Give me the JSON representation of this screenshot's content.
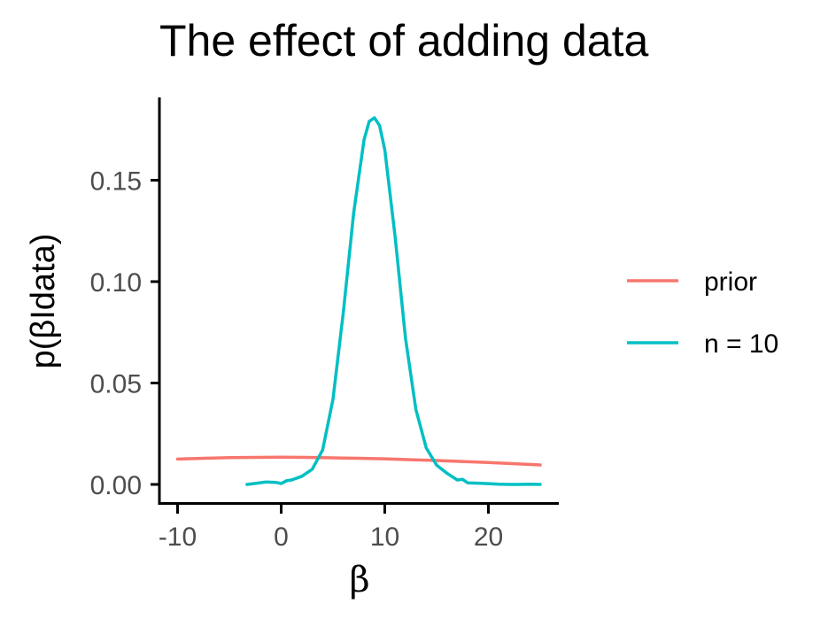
{
  "chart_data": {
    "type": "line",
    "title": "The effect of adding data",
    "xlabel": "β",
    "ylabel": "p(βIdata)",
    "xlim": [
      -11,
      27
    ],
    "ylim": [
      -0.009,
      0.19
    ],
    "x_ticks": [
      -10,
      0,
      10,
      20
    ],
    "x_tick_labels": [
      "-10",
      "0",
      "10",
      "20"
    ],
    "y_ticks": [
      0,
      0.05,
      0.1,
      0.15
    ],
    "y_tick_labels": [
      "0.00",
      "0.05",
      "0.10",
      "0.15"
    ],
    "grid": false,
    "legend_position": "right",
    "series": [
      {
        "name": "prior",
        "color": "#F8766D",
        "x": [
          -10,
          -7.5,
          -5,
          -2.5,
          0,
          2.5,
          5,
          7.5,
          10,
          12.5,
          15,
          17.5,
          20,
          22.5,
          25
        ],
        "y": [
          0.0125,
          0.0129,
          0.0132,
          0.0133,
          0.0134,
          0.0133,
          0.0131,
          0.0129,
          0.0126,
          0.0122,
          0.0118,
          0.0113,
          0.0108,
          0.0102,
          0.0096
        ]
      },
      {
        "name": "n = 10",
        "color": "#00BFC4",
        "x": [
          -3.3,
          -2.5,
          -1.5,
          -0.5,
          0,
          0.5,
          1,
          2,
          3,
          4,
          5,
          6,
          7,
          8,
          8.5,
          9,
          9.5,
          10,
          11,
          12,
          13,
          14,
          15,
          16,
          17,
          17.5,
          18,
          19,
          20,
          21,
          22,
          23,
          24,
          25
        ],
        "y": [
          0.0,
          0.0005,
          0.0012,
          0.001,
          0.0004,
          0.0018,
          0.0022,
          0.004,
          0.0075,
          0.017,
          0.042,
          0.085,
          0.134,
          0.17,
          0.179,
          0.1808,
          0.177,
          0.165,
          0.122,
          0.072,
          0.037,
          0.018,
          0.0095,
          0.0055,
          0.0022,
          0.0025,
          0.0008,
          0.0006,
          0.0004,
          0.0001,
          0.0,
          0.0,
          0.0001,
          0.0
        ]
      }
    ]
  }
}
